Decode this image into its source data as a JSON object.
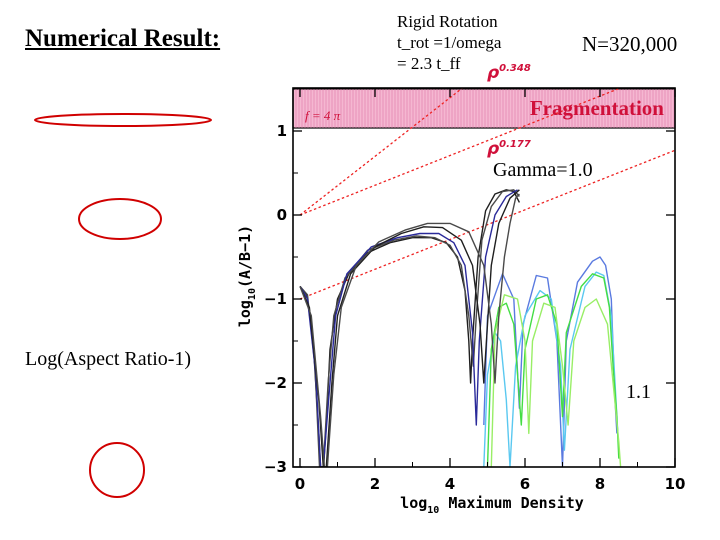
{
  "slide": {
    "title": "Numerical Result:",
    "rotation_lines": [
      "Rigid Rotation",
      "t_rot =1/omega",
      "= 2.3 t_ff"
    ],
    "particle_count": "N=320,000",
    "aspect_label": "Log(Aspect Ratio-1)",
    "shape_color": "#d00000"
  },
  "chart_data": {
    "type": "line",
    "xlabel_main": "log",
    "xlabel_sub": "10",
    "xlabel_rest": " Maximum Density",
    "ylabel_main": "log",
    "ylabel_sub": "10",
    "ylabel_rest": "(A/B−1)",
    "xlim": [
      0,
      10
    ],
    "ylim": [
      -3,
      1.4
    ],
    "x_ticks": [
      "0",
      "2",
      "4",
      "6",
      "8",
      "10"
    ],
    "y_ticks": [
      "−3",
      "−2",
      "−1",
      "0",
      "1"
    ],
    "colors": {
      "accent": "#d0103a",
      "band_fill": "#f5b7d1",
      "guide": "#ee2222",
      "series": [
        "#1f1f1f",
        "#4a4a4a",
        "#2a2a9a",
        "#5a7ae0",
        "#5ac8f0",
        "#44dd44",
        "#99ee66"
      ]
    },
    "fragmentation_band": {
      "y_from": 1.0,
      "y_to": 1.45,
      "label": "Fragmentation",
      "f_label": "f = 4 π"
    },
    "guides": [
      {
        "label": "ρ",
        "exponent": "0.348",
        "points": [
          [
            0,
            0
          ],
          [
            5.3,
            1.85
          ]
        ]
      },
      {
        "label": "ρ",
        "exponent": "0.177",
        "points": [
          [
            0,
            0
          ],
          [
            10,
            1.77
          ]
        ]
      },
      {
        "label": "",
        "exponent": "",
        "points": [
          [
            0,
            -1
          ],
          [
            10,
            0.77
          ]
        ]
      }
    ],
    "annotations": {
      "gamma": "Gamma=1.0",
      "gamma_right": "1.1"
    },
    "series": [
      {
        "points": [
          [
            0,
            -0.85
          ],
          [
            0.18,
            -0.95
          ],
          [
            0.35,
            -1.5
          ],
          [
            0.5,
            -2.6
          ],
          [
            0.55,
            -3.0
          ],
          [
            0.63,
            -3.0
          ],
          [
            0.7,
            -2.5
          ],
          [
            0.8,
            -1.6
          ],
          [
            1,
            -1.0
          ],
          [
            1.3,
            -0.7
          ],
          [
            1.8,
            -0.45
          ],
          [
            2.4,
            -0.33
          ],
          [
            3,
            -0.27
          ],
          [
            3.5,
            -0.27
          ],
          [
            3.9,
            -0.33
          ],
          [
            4.2,
            -0.5
          ],
          [
            4.4,
            -0.9
          ],
          [
            4.5,
            -1.5
          ],
          [
            4.55,
            -2.0
          ],
          [
            4.6,
            -1.5
          ],
          [
            4.75,
            -0.5
          ],
          [
            4.95,
            0.05
          ],
          [
            5.2,
            0.25
          ],
          [
            5.5,
            0.3
          ],
          [
            5.7,
            0.28
          ],
          [
            5.85,
            0.15
          ]
        ]
      },
      {
        "points": [
          [
            0,
            -0.85
          ],
          [
            0.2,
            -0.95
          ],
          [
            0.4,
            -1.8
          ],
          [
            0.52,
            -3.0
          ],
          [
            0.62,
            -3.0
          ],
          [
            0.75,
            -2.0
          ],
          [
            0.9,
            -1.2
          ],
          [
            1.2,
            -0.75
          ],
          [
            1.8,
            -0.42
          ],
          [
            2.5,
            -0.3
          ],
          [
            3.1,
            -0.25
          ],
          [
            3.6,
            -0.27
          ],
          [
            4.0,
            -0.36
          ],
          [
            4.3,
            -0.6
          ],
          [
            4.5,
            -1.2
          ],
          [
            4.62,
            -1.8
          ],
          [
            4.7,
            -1.2
          ],
          [
            4.85,
            -0.3
          ],
          [
            5.1,
            0.1
          ],
          [
            5.4,
            0.28
          ],
          [
            5.7,
            0.3
          ],
          [
            5.85,
            0.22
          ]
        ]
      },
      {
        "points": [
          [
            0,
            -0.85
          ],
          [
            0.2,
            -1.0
          ],
          [
            0.42,
            -1.9
          ],
          [
            0.55,
            -3.0
          ],
          [
            0.62,
            -3.0
          ],
          [
            0.78,
            -2.1
          ],
          [
            0.95,
            -1.2
          ],
          [
            1.25,
            -0.7
          ],
          [
            1.9,
            -0.38
          ],
          [
            2.6,
            -0.27
          ],
          [
            3.2,
            -0.22
          ],
          [
            3.7,
            -0.22
          ],
          [
            4.1,
            -0.33
          ],
          [
            4.4,
            -0.6
          ],
          [
            4.6,
            -1.4
          ],
          [
            4.7,
            -2.5
          ],
          [
            4.78,
            -1.5
          ],
          [
            4.95,
            -0.5
          ],
          [
            5.2,
            0.0
          ],
          [
            5.5,
            0.22
          ],
          [
            5.8,
            0.3
          ]
        ]
      },
      {
        "points": [
          [
            4.9,
            -2.5
          ],
          [
            5.0,
            -1.2
          ],
          [
            5.4,
            -0.7
          ],
          [
            5.7,
            -1.0
          ],
          [
            5.85,
            -2.3
          ],
          [
            5.95,
            -1.3
          ],
          [
            6.3,
            -0.72
          ],
          [
            6.6,
            -0.75
          ],
          [
            6.85,
            -1.5
          ],
          [
            7.0,
            -3.0
          ],
          [
            7.1,
            -1.5
          ],
          [
            7.4,
            -0.8
          ],
          [
            7.8,
            -0.55
          ],
          [
            8.0,
            -0.5
          ],
          [
            8.15,
            -0.6
          ],
          [
            8.3,
            -1.0
          ],
          [
            8.4,
            -2.2
          ],
          [
            8.45,
            -2.6
          ]
        ]
      },
      {
        "points": [
          [
            4.9,
            -3.0
          ],
          [
            5.0,
            -1.9
          ],
          [
            5.2,
            -1.4
          ],
          [
            5.35,
            -1.5
          ],
          [
            5.5,
            -2.2
          ],
          [
            5.6,
            -3.0
          ],
          [
            5.75,
            -1.8
          ],
          [
            6.0,
            -1.2
          ],
          [
            6.4,
            -0.9
          ],
          [
            6.7,
            -1.0
          ],
          [
            6.95,
            -1.8
          ],
          [
            7.05,
            -2.8
          ],
          [
            7.2,
            -1.6
          ],
          [
            7.6,
            -0.85
          ],
          [
            7.9,
            -0.68
          ],
          [
            8.1,
            -0.72
          ],
          [
            8.3,
            -1.2
          ],
          [
            8.45,
            -2.4
          ],
          [
            8.5,
            -2.8
          ]
        ]
      },
      {
        "points": [
          [
            5.0,
            -3.0
          ],
          [
            5.1,
            -1.6
          ],
          [
            5.3,
            -1.1
          ],
          [
            5.5,
            -1.05
          ],
          [
            5.7,
            -1.3
          ],
          [
            5.9,
            -2.5
          ],
          [
            6.0,
            -1.6
          ],
          [
            6.3,
            -1.0
          ],
          [
            6.6,
            -0.95
          ],
          [
            6.85,
            -1.3
          ],
          [
            7.0,
            -2.4
          ],
          [
            7.1,
            -1.4
          ],
          [
            7.5,
            -0.85
          ],
          [
            7.8,
            -0.7
          ],
          [
            8.1,
            -0.75
          ],
          [
            8.25,
            -1.1
          ],
          [
            8.35,
            -1.8
          ],
          [
            8.45,
            -2.4
          ],
          [
            8.5,
            -2.9
          ]
        ]
      },
      {
        "points": [
          [
            5.1,
            -3.0
          ],
          [
            5.2,
            -1.4
          ],
          [
            5.45,
            -0.95
          ],
          [
            5.8,
            -1.0
          ],
          [
            6.0,
            -1.5
          ],
          [
            6.1,
            -2.6
          ],
          [
            6.2,
            -1.5
          ],
          [
            6.5,
            -1.05
          ],
          [
            6.8,
            -1.1
          ],
          [
            7.0,
            -1.8
          ],
          [
            7.15,
            -2.5
          ],
          [
            7.3,
            -1.5
          ],
          [
            7.6,
            -1.1
          ],
          [
            7.9,
            -1.0
          ],
          [
            8.2,
            -1.3
          ],
          [
            8.35,
            -2.0
          ],
          [
            8.5,
            -2.7
          ],
          [
            8.55,
            -3.0
          ]
        ]
      },
      {
        "points": [
          [
            0,
            -0.85
          ],
          [
            0.25,
            -1.1
          ],
          [
            0.5,
            -2.2
          ],
          [
            0.62,
            -3.0
          ],
          [
            0.7,
            -3.0
          ],
          [
            0.85,
            -2.0
          ],
          [
            1.0,
            -1.2
          ],
          [
            1.35,
            -0.7
          ],
          [
            2.0,
            -0.38
          ],
          [
            2.7,
            -0.22
          ],
          [
            3.3,
            -0.14
          ],
          [
            3.8,
            -0.15
          ],
          [
            4.3,
            -0.3
          ],
          [
            4.6,
            -0.6
          ],
          [
            4.8,
            -1.3
          ],
          [
            4.9,
            -2.0
          ],
          [
            5.0,
            -1.3
          ],
          [
            5.1,
            -0.6
          ],
          [
            5.3,
            -0.1
          ],
          [
            5.6,
            0.2
          ],
          [
            5.85,
            0.3
          ]
        ]
      },
      {
        "points": [
          [
            0,
            -0.85
          ],
          [
            0.3,
            -1.2
          ],
          [
            0.55,
            -2.4
          ],
          [
            0.65,
            -3.0
          ],
          [
            0.73,
            -3.0
          ],
          [
            0.9,
            -1.9
          ],
          [
            1.1,
            -1.1
          ],
          [
            1.5,
            -0.6
          ],
          [
            2.1,
            -0.32
          ],
          [
            2.8,
            -0.18
          ],
          [
            3.4,
            -0.1
          ],
          [
            4.0,
            -0.1
          ],
          [
            4.5,
            -0.2
          ],
          [
            4.9,
            -0.6
          ],
          [
            5.1,
            -1.3
          ],
          [
            5.2,
            -2.0
          ],
          [
            5.3,
            -1.2
          ],
          [
            5.45,
            -0.5
          ],
          [
            5.6,
            -0.1
          ],
          [
            5.75,
            0.2
          ],
          [
            5.85,
            0.25
          ]
        ]
      }
    ]
  }
}
